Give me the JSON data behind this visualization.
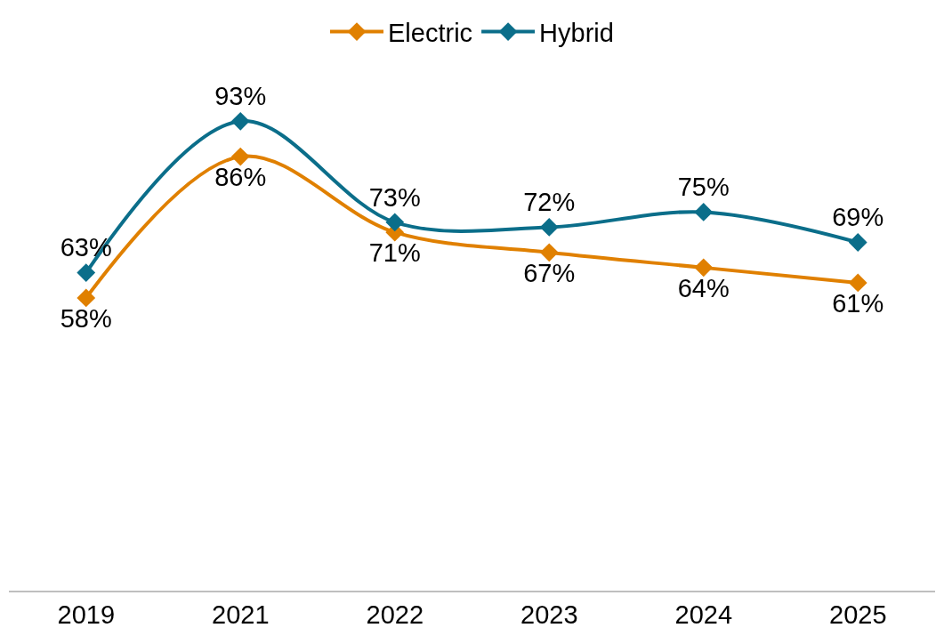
{
  "chart_data": {
    "type": "line",
    "categories": [
      "2019",
      "2021",
      "2022",
      "2023",
      "2024",
      "2025"
    ],
    "series": [
      {
        "name": "Electric",
        "color": "#e08000",
        "values": [
          58,
          86,
          71,
          67,
          64,
          61
        ],
        "value_labels": [
          "58%",
          "86%",
          "71%",
          "67%",
          "64%",
          "61%"
        ]
      },
      {
        "name": "Hybrid",
        "color": "#0b6e8a",
        "values": [
          63,
          93,
          73,
          72,
          75,
          69
        ],
        "value_labels": [
          "63%",
          "93%",
          "73%",
          "72%",
          "75%",
          "69%"
        ]
      }
    ],
    "marker": "diamond",
    "line_style": "solid",
    "legend": "top"
  }
}
